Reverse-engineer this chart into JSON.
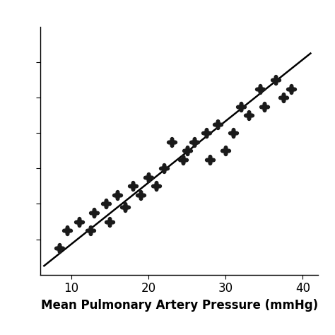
{
  "title": "",
  "xlabel": "Mean Pulmonary Artery Pressure (mmHg)",
  "ylabel": "",
  "xlim": [
    6,
    42
  ],
  "ylim": [
    0,
    14
  ],
  "xticks": [
    10,
    20,
    30,
    40
  ],
  "yticks": [
    2,
    4,
    6,
    8,
    10,
    12
  ],
  "scatter_x": [
    8.5,
    9.5,
    11.0,
    12.5,
    13.0,
    14.5,
    15.0,
    16.0,
    17.0,
    18.0,
    19.0,
    20.0,
    21.0,
    22.0,
    23.0,
    24.5,
    25.0,
    26.0,
    27.5,
    28.0,
    29.0,
    30.0,
    31.0,
    32.0,
    33.0,
    34.5,
    35.0,
    36.5,
    37.5,
    38.5
  ],
  "scatter_y": [
    1.5,
    2.5,
    3.0,
    2.5,
    3.5,
    4.0,
    3.0,
    4.5,
    3.8,
    5.0,
    4.5,
    5.5,
    5.0,
    6.0,
    7.5,
    6.5,
    7.0,
    7.5,
    8.0,
    6.5,
    8.5,
    7.0,
    8.0,
    9.5,
    9.0,
    10.5,
    9.5,
    11.0,
    10.0,
    10.5
  ],
  "line_x": [
    6.5,
    41.0
  ],
  "line_y": [
    0.5,
    12.5
  ],
  "marker_color": "#1a1a1a",
  "line_color": "#000000",
  "bg_color": "#ffffff",
  "xlabel_fontsize": 12,
  "xlabel_fontweight": "bold",
  "tick_fontsize": 12,
  "marker_size": 100,
  "linewidth": 1.8
}
